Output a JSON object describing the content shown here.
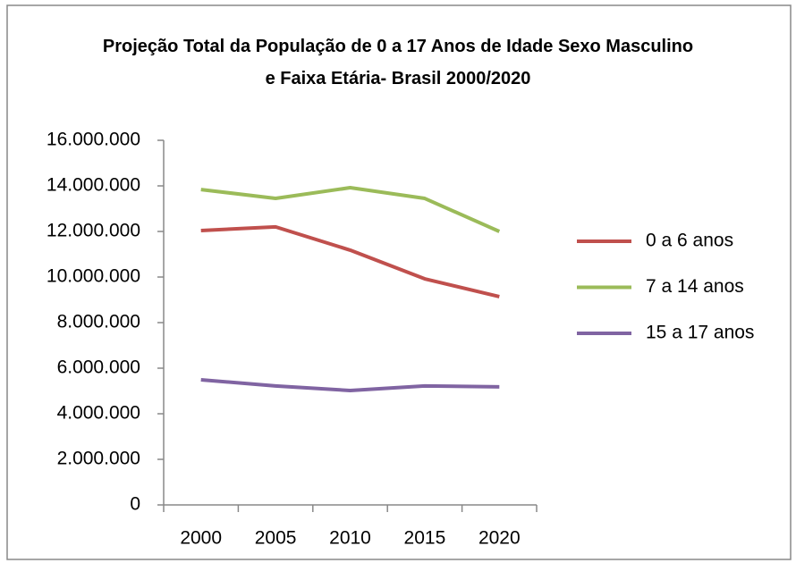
{
  "chart_data": {
    "type": "line",
    "title": "Projeção Total da População de 0 a 17 Anos de Idade Sexo Masculino e Faixa Etária- Brasil 2000/2020",
    "categories": [
      "2000",
      "2005",
      "2010",
      "2015",
      "2020"
    ],
    "series": [
      {
        "name": "0 a 6 anos",
        "color": "#c0504d",
        "values": [
          12040000,
          12200000,
          11180000,
          9920000,
          9140000
        ]
      },
      {
        "name": "7 a 14 anos",
        "color": "#9bbb59",
        "values": [
          13840000,
          13450000,
          13920000,
          13450000,
          12000000
        ]
      },
      {
        "name": "15 a 17 anos",
        "color": "#8064a2",
        "values": [
          5490000,
          5220000,
          5020000,
          5220000,
          5180000
        ]
      }
    ],
    "ylim": [
      0,
      16000000
    ],
    "yticks": [
      {
        "value": 0,
        "label": "0"
      },
      {
        "value": 2000000,
        "label": "2.000.000"
      },
      {
        "value": 4000000,
        "label": "4.000.000"
      },
      {
        "value": 6000000,
        "label": "6.000.000"
      },
      {
        "value": 8000000,
        "label": "8.000.000"
      },
      {
        "value": 10000000,
        "label": "10.000.000"
      },
      {
        "value": 12000000,
        "label": "12.000.000"
      },
      {
        "value": 14000000,
        "label": "14.000.000"
      },
      {
        "value": 16000000,
        "label": "16.000.000"
      }
    ],
    "grid": false,
    "legend": "right"
  }
}
